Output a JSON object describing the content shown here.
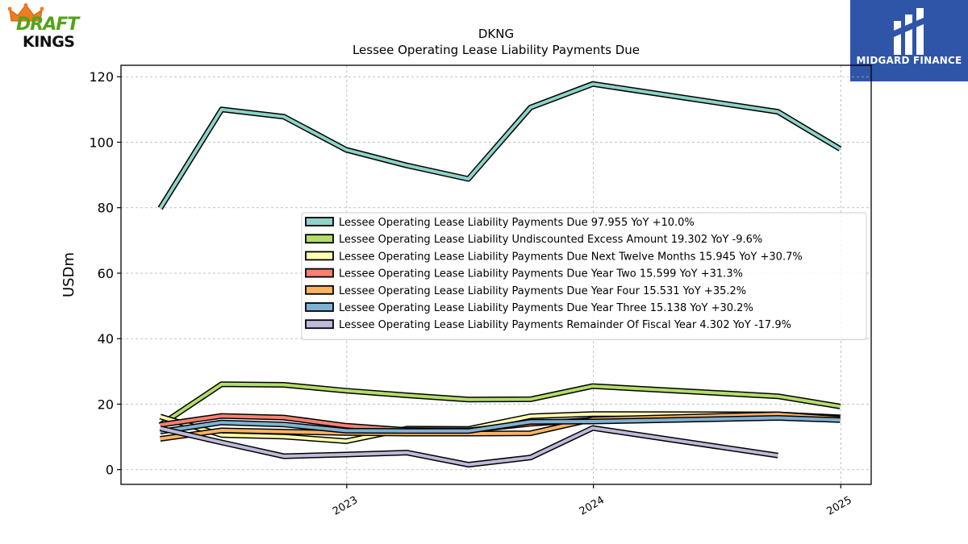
{
  "chart_data": {
    "type": "line",
    "title": "DKNG",
    "subtitle": "Lessee Operating Lease Liability Payments Due",
    "xlabel": "",
    "ylabel": "USDm",
    "xlim": [
      "2022-02-01",
      "2025-02-15"
    ],
    "ylim": [
      -4.5,
      123.5
    ],
    "yticks": [
      0,
      20,
      40,
      60,
      80,
      100,
      120
    ],
    "xticks": [
      {
        "date": "2023-01-01",
        "label": "2023"
      },
      {
        "date": "2024-01-01",
        "label": "2024"
      },
      {
        "date": "2025-01-01",
        "label": "2025"
      }
    ],
    "grid": true,
    "legend_position": "center-right",
    "series": [
      {
        "name": "Lessee Operating Lease Liability Payments Due",
        "legend_label": "Lessee Operating Lease Liability Payments Due  97.955 YoY +10.0%",
        "color": "#8dd3c7",
        "x": [
          "2022-03-31",
          "2022-06-30",
          "2022-09-30",
          "2022-12-31",
          "2023-03-31",
          "2023-06-30",
          "2023-09-30",
          "2023-12-31",
          "2024-09-30",
          "2024-12-31"
        ],
        "values": [
          79.8,
          110.0,
          107.8,
          97.7,
          92.9,
          88.8,
          110.6,
          117.8,
          109.3,
          97.955
        ]
      },
      {
        "name": "Lessee Operating Lease Liability Undiscounted Excess Amount",
        "legend_label": "Lessee Operating Lease Liability Undiscounted Excess Amount  19.302 YoY -9.6%",
        "color": "#b3de69",
        "x": [
          "2022-03-31",
          "2022-06-30",
          "2022-09-30",
          "2022-12-31",
          "2023-03-31",
          "2023-06-30",
          "2023-09-30",
          "2023-12-31",
          "2024-09-30",
          "2024-12-31"
        ],
        "values": [
          13.6,
          26.1,
          25.9,
          24.1,
          22.7,
          21.4,
          21.5,
          25.5,
          22.4,
          19.302
        ]
      },
      {
        "name": "Lessee Operating Lease Liability Payments Due Next Twelve Months",
        "legend_label": "Lessee Operating Lease Liability Payments Due Next Twelve Months  15.945 YoY +30.7%",
        "color": "#ffffb3",
        "x": [
          "2022-03-31",
          "2022-06-30",
          "2022-09-30",
          "2022-12-31",
          "2023-03-31",
          "2023-06-30",
          "2023-09-30",
          "2023-12-31",
          "2024-09-30",
          "2024-12-31"
        ],
        "values": [
          16.2,
          10.6,
          10.1,
          8.7,
          12.5,
          12.4,
          16.3,
          17.0,
          16.9,
          15.945
        ]
      },
      {
        "name": "Lessee Operating Lease Liability Payments Due Year Two",
        "legend_label": "Lessee Operating Lease Liability Payments Due Year Two  15.599 YoY +31.3%",
        "color": "#fb8072",
        "x": [
          "2022-03-31",
          "2022-06-30",
          "2022-09-30",
          "2022-12-31",
          "2023-03-31",
          "2023-06-30",
          "2023-09-30",
          "2023-12-31",
          "2024-09-30",
          "2024-12-31"
        ],
        "values": [
          13.7,
          16.4,
          15.9,
          13.4,
          12.1,
          12.0,
          14.0,
          15.2,
          16.6,
          15.599
        ]
      },
      {
        "name": "Lessee Operating Lease Liability Payments Due Year Four",
        "legend_label": "Lessee Operating Lease Liability Payments Due Year Four  15.531 YoY +35.2%",
        "color": "#fdb462",
        "x": [
          "2022-03-31",
          "2022-06-30",
          "2022-09-30",
          "2022-12-31",
          "2023-03-31",
          "2023-06-30",
          "2023-09-30",
          "2023-12-31",
          "2024-09-30",
          "2024-12-31"
        ],
        "values": [
          9.4,
          12.0,
          11.6,
          11.2,
          11.0,
          11.0,
          11.1,
          15.4,
          16.9,
          15.531
        ]
      },
      {
        "name": "Lessee Operating Lease Liability Payments Due Year Three",
        "legend_label": "Lessee Operating Lease Liability Payments Due Year Three  15.138 YoY +30.2%",
        "color": "#80b1d3",
        "x": [
          "2022-03-31",
          "2022-06-30",
          "2022-09-30",
          "2022-12-31",
          "2023-03-31",
          "2023-06-30",
          "2023-09-30",
          "2023-12-31",
          "2024-09-30",
          "2024-12-31"
        ],
        "values": [
          11.6,
          14.4,
          13.8,
          11.9,
          11.8,
          11.8,
          14.6,
          14.7,
          15.8,
          15.138
        ]
      },
      {
        "name": "Lessee Operating Lease Liability Payments Remainder Of Fiscal Year",
        "legend_label": "Lessee Operating Lease Liability Payments Remainder Of Fiscal Year  4.302 YoY -17.9%",
        "color": "#bebada",
        "x": [
          "2022-03-31",
          "2022-06-30",
          "2022-09-30",
          "2022-12-31",
          "2023-03-31",
          "2023-06-30",
          "2023-09-30",
          "2023-12-31",
          "2024-09-30"
        ],
        "values": [
          12.6,
          8.3,
          4.1,
          4.6,
          5.2,
          1.5,
          3.7,
          12.7,
          4.302
        ]
      }
    ]
  },
  "branding": {
    "left_logo_top": "DRAFT",
    "left_logo_bottom": "KINGS",
    "right_logo_name": "MIDGARD FINANCE"
  }
}
